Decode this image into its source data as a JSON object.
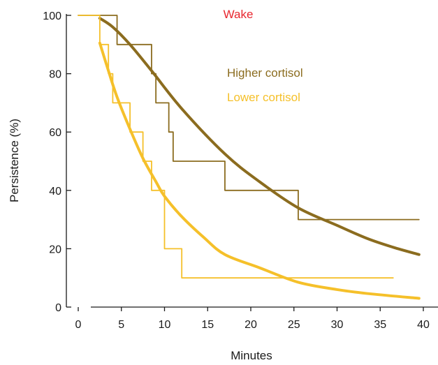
{
  "chart_data": {
    "type": "line",
    "title": "Wake",
    "xlabel": "Minutes",
    "ylabel": "Persistence (%)",
    "xlim": [
      0,
      40
    ],
    "ylim": [
      0,
      100
    ],
    "x_ticks": [
      0,
      5,
      10,
      15,
      20,
      25,
      30,
      35,
      40
    ],
    "y_ticks": [
      0,
      20,
      40,
      60,
      80,
      100
    ],
    "grid": false,
    "legend_position": "top-right",
    "colors": {
      "title": "#e8262e",
      "higher": "#8b6c1f",
      "lower": "#f5c02a",
      "axis": "#1a1a1a"
    },
    "series": [
      {
        "name": "Higher cortisol",
        "kind": "kaplan-meier-step",
        "x": [
          0,
          4.5,
          4.5,
          8.5,
          8.5,
          9,
          9,
          10.5,
          10.5,
          11,
          11,
          17,
          17,
          25.5,
          25.5,
          39.5
        ],
        "y": [
          100,
          100,
          90,
          90,
          80,
          80,
          70,
          70,
          60,
          60,
          50,
          50,
          40,
          40,
          30,
          30
        ]
      },
      {
        "name": "Higher cortisol",
        "kind": "fitted-curve",
        "x": [
          2.5,
          4,
          6,
          8.5,
          12,
          17,
          21,
          25.5,
          30,
          33.5,
          36.5,
          39.5
        ],
        "y": [
          99,
          96,
          90,
          81,
          68,
          52.5,
          43,
          34,
          28,
          23.5,
          20.5,
          18
        ]
      },
      {
        "name": "Lower cortisol",
        "kind": "kaplan-meier-step",
        "x": [
          0,
          2.5,
          2.5,
          3.5,
          3.5,
          4,
          4,
          6,
          6,
          7.5,
          7.5,
          8.5,
          8.5,
          10,
          10,
          12,
          12,
          36.5
        ],
        "y": [
          100,
          100,
          90,
          90,
          80,
          80,
          70,
          70,
          60,
          60,
          50,
          50,
          40,
          40,
          20,
          20,
          10,
          10
        ]
      },
      {
        "name": "Lower cortisol",
        "kind": "fitted-curve",
        "x": [
          2.5,
          3.5,
          4.5,
          6,
          7.5,
          9,
          10,
          12,
          14.5,
          17,
          21,
          25.5,
          30,
          34,
          39.5
        ],
        "y": [
          90.5,
          81,
          72,
          61,
          51,
          43,
          38,
          31,
          24,
          18,
          13.5,
          8.5,
          6,
          4.5,
          3
        ]
      }
    ]
  }
}
